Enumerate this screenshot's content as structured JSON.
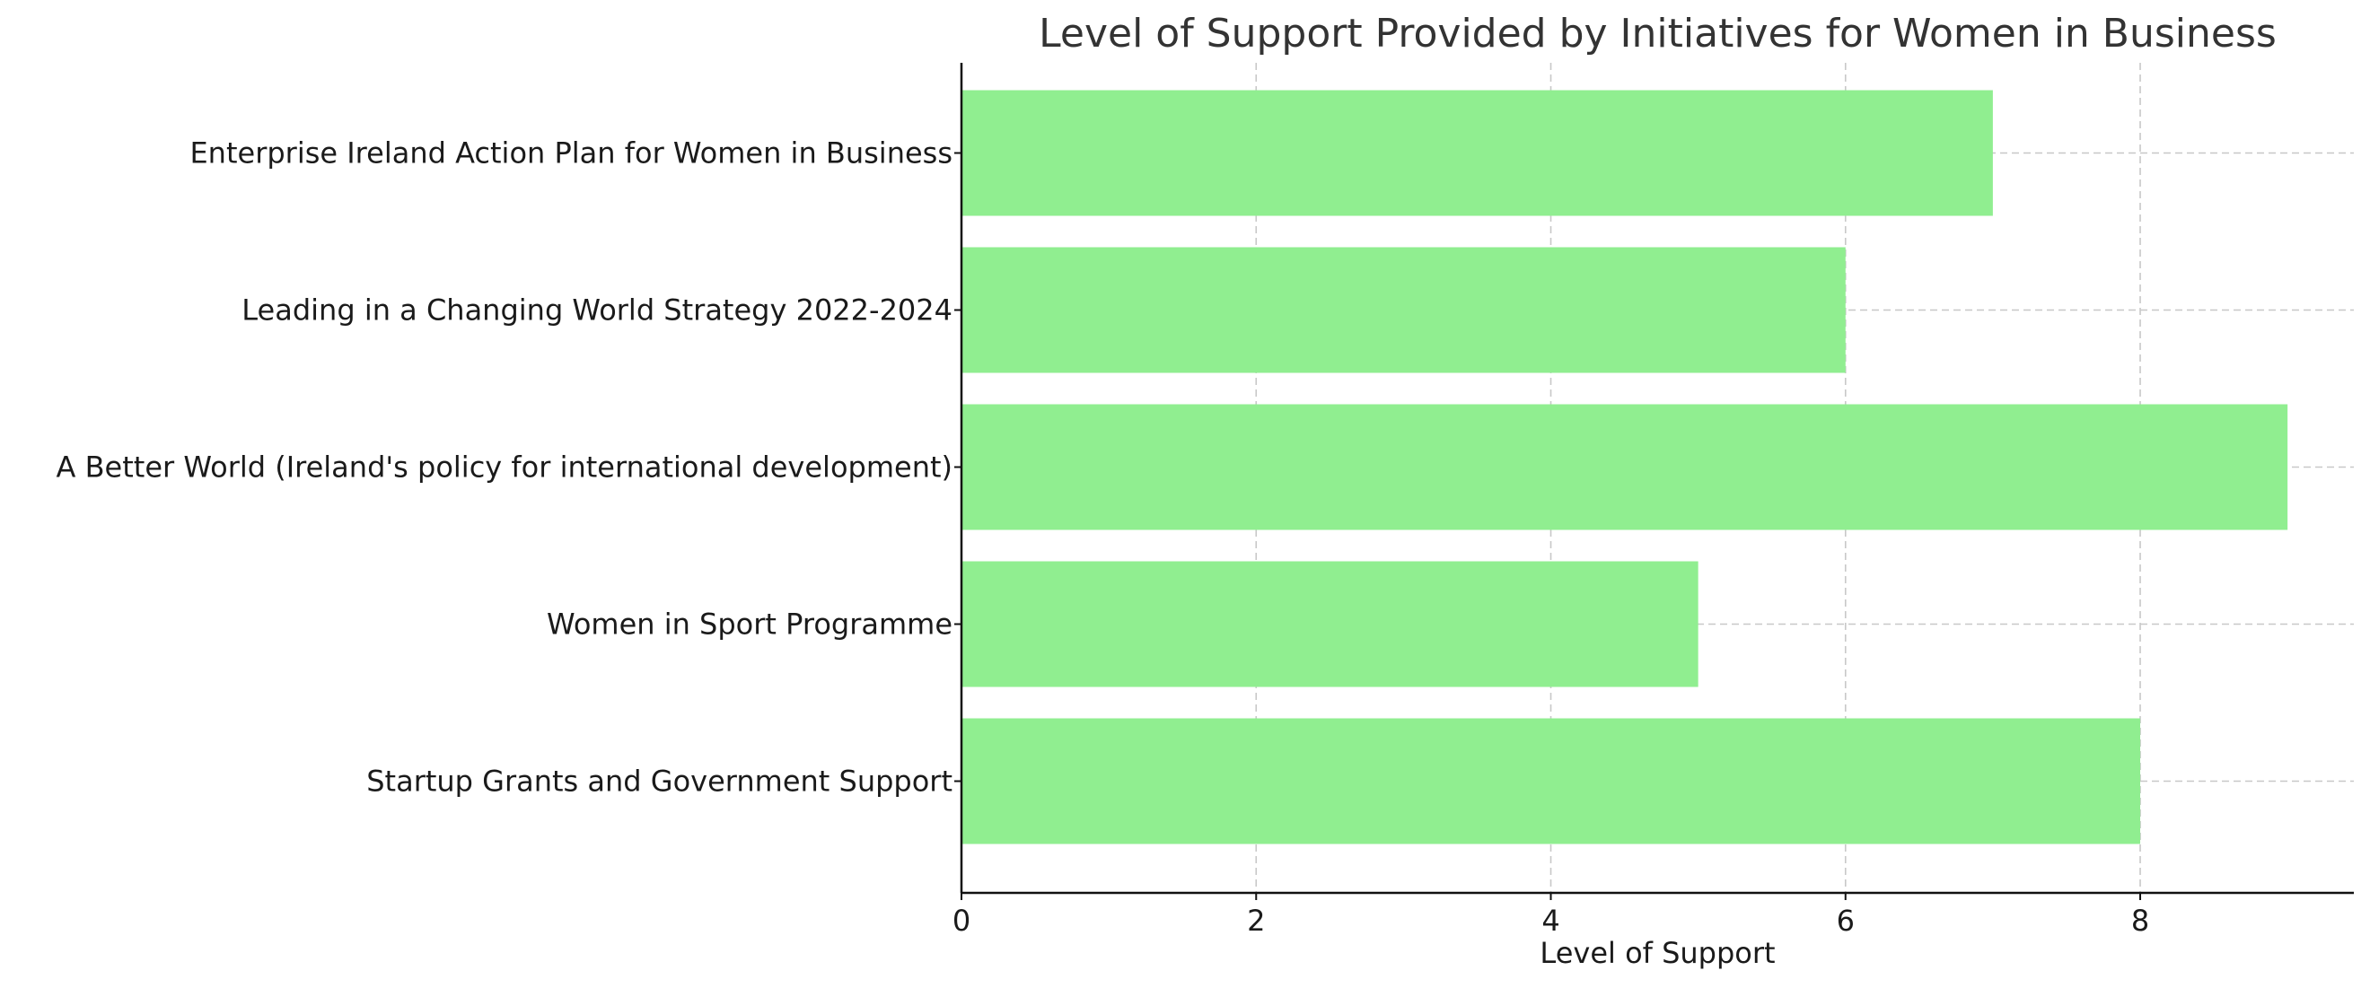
{
  "chart_data": {
    "type": "bar",
    "orientation": "horizontal",
    "title": "Level of Support Provided by Initiatives for Women in Business",
    "xlabel": "Level of Support",
    "ylabel": "",
    "categories": [
      "Enterprise Ireland Action Plan for Women in Business",
      "Leading in a Changing World Strategy 2022-2024",
      "A Better World (Ireland's policy for international development)",
      "Women in Sport Programme",
      "Startup Grants and Government Support"
    ],
    "values": [
      7,
      6,
      9,
      5,
      8
    ],
    "xlim": [
      0,
      9.45
    ],
    "xticks": [
      0,
      2,
      4,
      6,
      8
    ],
    "xtick_labels": [
      "0",
      "2",
      "4",
      "6",
      "8"
    ],
    "grid": true,
    "bar_color": "#90EE90"
  }
}
